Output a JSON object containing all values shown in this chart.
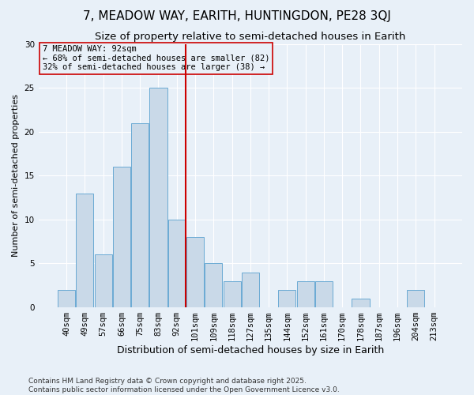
{
  "title": "7, MEADOW WAY, EARITH, HUNTINGDON, PE28 3QJ",
  "subtitle": "Size of property relative to semi-detached houses in Earith",
  "xlabel": "Distribution of semi-detached houses by size in Earith",
  "ylabel": "Number of semi-detached properties",
  "bar_labels": [
    "40sqm",
    "49sqm",
    "57sqm",
    "66sqm",
    "75sqm",
    "83sqm",
    "92sqm",
    "101sqm",
    "109sqm",
    "118sqm",
    "127sqm",
    "135sqm",
    "144sqm",
    "152sqm",
    "161sqm",
    "170sqm",
    "178sqm",
    "187sqm",
    "196sqm",
    "204sqm",
    "213sqm"
  ],
  "bar_values": [
    2,
    13,
    6,
    16,
    21,
    25,
    10,
    8,
    5,
    3,
    4,
    0,
    2,
    3,
    3,
    0,
    1,
    0,
    0,
    2,
    0
  ],
  "bar_color": "#c9d9e8",
  "bar_edge_color": "#6aaad4",
  "marker_index": 6,
  "marker_color": "#cc0000",
  "annotation_title": "7 MEADOW WAY: 92sqm",
  "annotation_line1": "← 68% of semi-detached houses are smaller (82)",
  "annotation_line2": "32% of semi-detached houses are larger (38) →",
  "annotation_box_color": "#cc0000",
  "ylim": [
    0,
    30
  ],
  "yticks": [
    0,
    5,
    10,
    15,
    20,
    25,
    30
  ],
  "background_color": "#e8f0f8",
  "grid_color": "#ffffff",
  "footer": "Contains HM Land Registry data © Crown copyright and database right 2025.\nContains public sector information licensed under the Open Government Licence v3.0.",
  "title_fontsize": 11,
  "subtitle_fontsize": 9.5,
  "xlabel_fontsize": 9,
  "ylabel_fontsize": 8,
  "tick_fontsize": 7.5,
  "annotation_fontsize": 7.5,
  "footer_fontsize": 6.5
}
